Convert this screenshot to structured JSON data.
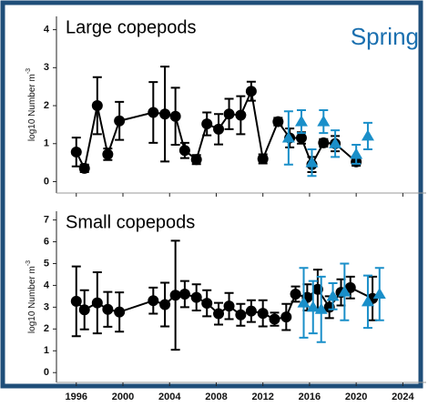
{
  "chart_data": [
    {
      "type": "errorbar",
      "title": "Large copepods",
      "annotation": "Spring",
      "y_label": "log10 Number m",
      "y_label_sup": "-3",
      "xlim": [
        1994.3,
        2026
      ],
      "xticks": [
        1996,
        2000,
        2004,
        2008,
        2012,
        2016,
        2020,
        2024
      ],
      "ylim": [
        -0.3,
        4.35
      ],
      "yticks": [
        0,
        1,
        2,
        3,
        4
      ],
      "series": [
        {
          "color": "#000000",
          "marker": "circle",
          "line": true,
          "x": [
            1996.0,
            1996.7,
            1997.8,
            1998.7,
            1999.7,
            2002.6,
            2003.6,
            2004.5,
            2005.3,
            2006.3,
            2007.2,
            2008.2,
            2009.1,
            2010.1,
            2011.0,
            2012.0,
            2013.3,
            2014.3,
            2015.3,
            2016.2,
            2017.2,
            2018.2,
            2020.0
          ],
          "values": [
            0.78,
            0.35,
            2.0,
            0.72,
            1.6,
            1.82,
            1.78,
            1.72,
            0.82,
            0.58,
            1.52,
            1.38,
            1.78,
            1.75,
            2.38,
            0.6,
            1.58,
            1.15,
            1.15,
            0.45,
            1.02,
            1.0,
            0.52
          ],
          "errors": [
            0.38,
            0.1,
            0.75,
            0.15,
            0.5,
            0.8,
            1.25,
            0.75,
            0.2,
            0.12,
            0.3,
            0.4,
            0.4,
            0.5,
            0.25,
            0.12,
            0.1,
            0.25,
            0.15,
            0.2,
            0.1,
            0.2,
            0.1
          ]
        },
        {
          "color": "#1a8fc9",
          "marker": "triangle",
          "line": false,
          "x": [
            2014.2,
            2015.3,
            2016.2,
            2017.2,
            2018.2,
            2020.0,
            2021.0
          ],
          "values": [
            1.15,
            1.58,
            0.5,
            1.58,
            1.0,
            0.72,
            1.2
          ],
          "errors": [
            0.7,
            0.3,
            0.35,
            0.3,
            0.35,
            0.25,
            0.35
          ]
        }
      ]
    },
    {
      "type": "errorbar",
      "title": "Small copepods",
      "y_label": "log10 Number m",
      "y_label_sup": "-3",
      "xlim": [
        1994.3,
        2026
      ],
      "xticks": [
        1996,
        2000,
        2004,
        2008,
        2012,
        2016,
        2020,
        2024
      ],
      "ylim": [
        -0.45,
        7.4
      ],
      "yticks": [
        0,
        1,
        2,
        3,
        4,
        5,
        6,
        7
      ],
      "series": [
        {
          "color": "#000000",
          "marker": "circle",
          "line": true,
          "x": [
            1996.0,
            1996.7,
            1997.8,
            1998.7,
            1999.7,
            2002.6,
            2003.6,
            2004.5,
            2005.3,
            2006.3,
            2007.2,
            2008.2,
            2009.1,
            2010.1,
            2011.0,
            2012.0,
            2013.0,
            2014.0,
            2014.8,
            2015.8,
            2016.7,
            2017.7,
            2018.7,
            2019.5,
            2021.4
          ],
          "values": [
            3.27,
            2.88,
            3.2,
            2.9,
            2.78,
            3.3,
            3.12,
            3.55,
            3.6,
            3.45,
            3.18,
            2.7,
            3.05,
            2.65,
            2.82,
            2.72,
            2.45,
            2.55,
            3.6,
            3.45,
            3.82,
            3.0,
            3.68,
            3.9,
            3.4
          ],
          "errors": [
            1.6,
            0.9,
            1.4,
            0.8,
            0.9,
            0.6,
            1.0,
            2.5,
            0.6,
            0.6,
            0.6,
            0.5,
            0.6,
            0.5,
            0.5,
            0.6,
            0.3,
            0.6,
            0.35,
            0.6,
            0.9,
            0.5,
            0.6,
            0.5,
            1.0
          ]
        },
        {
          "color": "#1a8fc9",
          "marker": "triangle",
          "line": false,
          "x": [
            2015.5,
            2016.3,
            2017.0,
            2018.0,
            2019.0,
            2021.0,
            2022.0
          ],
          "values": [
            3.2,
            3.0,
            2.9,
            3.5,
            3.7,
            3.25,
            3.6
          ],
          "errors": [
            1.6,
            1.2,
            1.5,
            0.6,
            1.3,
            1.2,
            1.2
          ]
        }
      ]
    }
  ]
}
